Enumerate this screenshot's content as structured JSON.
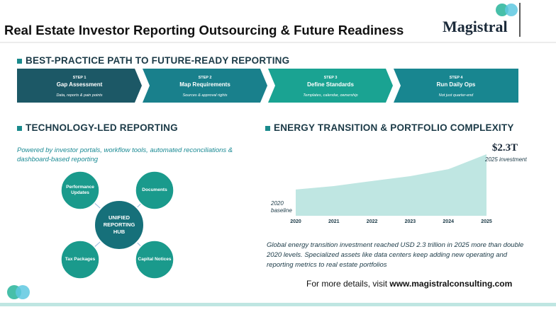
{
  "header": {
    "title": "Real Estate Investor Reporting Outsourcing & Future Readiness",
    "logo": "Magistral"
  },
  "process": {
    "heading": "BEST-PRACTICE PATH TO FUTURE-READY REPORTING",
    "steps": [
      {
        "step": "STEP 1",
        "title": "Gap Assessment",
        "detail": "Data, reports & pain points"
      },
      {
        "step": "STEP 2",
        "title": "Map Requirements",
        "detail": "Sources & approval rights"
      },
      {
        "step": "STEP 3",
        "title": "Define Standards",
        "detail": "Templates, calendar, ownership"
      },
      {
        "step": "STEP 4",
        "title": "Run Daily Ops",
        "detail": "Not just quarter-end"
      }
    ]
  },
  "technology": {
    "heading": "TECHNOLOGY-LED REPORTING",
    "intro": "Powered by investor portals, workflow tools, automated reconciliations & dashboard-based reporting",
    "hub": "UNIFIED REPORTING HUB",
    "nodes": [
      "Performance Updates",
      "Documents",
      "Tax Packages",
      "Capital Notices"
    ]
  },
  "energy": {
    "heading": "ENERGY TRANSITION & PORTFOLIO COMPLEXITY",
    "description": "Global energy transition investment reached USD 2.3 trillion in 2025 more than double 2020 levels. Specialized assets like data centers keep adding new operating and reporting metrics to real estate portfolios"
  },
  "chart_data": {
    "type": "area",
    "categories": [
      "2020",
      "2021",
      "2022",
      "2023",
      "2024",
      "2025"
    ],
    "values": [
      0.98,
      1.11,
      1.3,
      1.48,
      1.74,
      2.3
    ],
    "value_labels": [
      null,
      null,
      null,
      null,
      null,
      "$2.3T"
    ],
    "color": "#bfe6e2",
    "ylim": [
      0,
      2.3
    ],
    "annotations": [
      "2020 baseline",
      "2025 investment"
    ]
  },
  "footer": {
    "prefix": "For more details, visit",
    "link": "www.magistralconsulting.com"
  }
}
